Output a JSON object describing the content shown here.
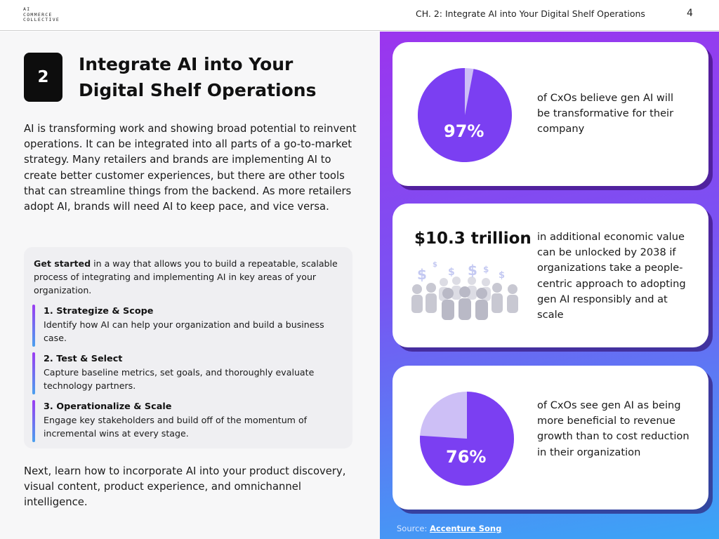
{
  "header": {
    "logo_lines": [
      "AI",
      "COMMERCE",
      "COLLECTIVE"
    ],
    "chapter": "CH. 2: Integrate AI into Your Digital Shelf Operations",
    "page_number": "4"
  },
  "section": {
    "number": "2",
    "title": "Integrate AI into Your Digital Shelf Operations",
    "intro": "AI is transforming work and showing broad potential to reinvent operations. It can be integrated into all parts of a go-to-market strategy. Many retailers and brands are implementing AI to create better customer experiences, but there are other tools that can streamline things from the backend. As more retailers adopt AI, brands will need AI to keep pace, and vice versa."
  },
  "get_started": {
    "lead": "Get started",
    "text": " in a way that allows you to build a repeatable, scalable process of integrating and implementing AI in key areas of your organization.",
    "steps": [
      {
        "title": "1. Strategize & Scope",
        "desc": "Identify how AI can help your organization and build a business case."
      },
      {
        "title": "2. Test & Select",
        "desc": "Capture baseline metrics, set goals, and thoroughly evaluate technology partners."
      },
      {
        "title": "3. Operationalize & Scale",
        "desc": "Engage key stakeholders and build off of the momentum of incremental wins at every stage."
      }
    ]
  },
  "next_text": "Next, learn how to incorporate AI into your product discovery, visual content, product experience, and omnichannel intelligence.",
  "stats": [
    {
      "value": "97%",
      "percent": 97,
      "text": "of CxOs believe gen AI will be transformative for their company"
    },
    {
      "value": "$10.3 trillion",
      "text": "in additional economic value can be unlocked by 2038 if organizations take a people-centric approach to adopting gen AI responsibly and at scale"
    },
    {
      "value": "76%",
      "percent": 76,
      "text": "of CxOs see gen AI as being more beneficial to revenue growth than to cost reduction in their organization"
    }
  ],
  "source": {
    "label": "Source:",
    "link": "Accenture Song"
  },
  "colors": {
    "pie_main": "#7b3ff2",
    "pie_rest": "#cdbff6",
    "gradient_top": "#9b35ee",
    "gradient_bottom": "#3aa6f6"
  }
}
